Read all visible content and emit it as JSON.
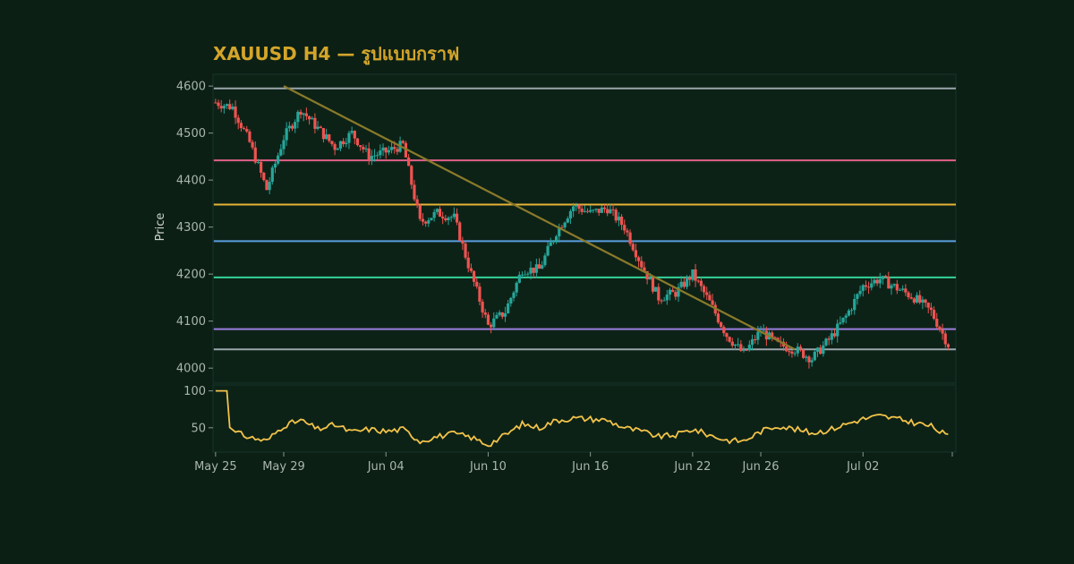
{
  "chart_data": {
    "type": "candlestick",
    "title": "XAUUSD H4 — รูปแบบกราฟ",
    "ylabel": "Price",
    "ylim": [
      3968,
      4625
    ],
    "yticks": [
      4000,
      4100,
      4200,
      4300,
      4400,
      4500,
      4600
    ],
    "x_start": "May 25",
    "x_end": "Jul 07",
    "xticks": [
      "May 25",
      "May 29",
      "Jun 04",
      "Jun 10",
      "Jun 16",
      "Jun 22",
      "Jun 26",
      "Jul 02"
    ],
    "colors": {
      "background": "#0b1f14",
      "up": "#26a69a",
      "down": "#ef5350",
      "rsi": "#f2c34a",
      "trendline": "#8a7a2a",
      "title": "#d4a52a"
    },
    "levels": [
      {
        "price": 4595,
        "color": "#9aa5ac"
      },
      {
        "price": 4442,
        "color": "#e0608a"
      },
      {
        "price": 4348,
        "color": "#e5b336"
      },
      {
        "price": 4270,
        "color": "#5a9ee0"
      },
      {
        "price": 4193,
        "color": "#34d399"
      },
      {
        "price": 4083,
        "color": "#9b7ee0"
      },
      {
        "price": 4040,
        "color": "#9aa5ac"
      }
    ],
    "trendline": {
      "from": {
        "date": "May 29",
        "price": 4600
      },
      "to": {
        "date": "Jun 28",
        "price": 4040
      }
    },
    "series": [
      {
        "name": "close",
        "points": [
          [
            "May 25",
            4565
          ],
          [
            "May 26",
            4555
          ],
          [
            "May 27",
            4480
          ],
          [
            "May 28",
            4380
          ],
          [
            "May 29",
            4490
          ],
          [
            "May 30",
            4550
          ],
          [
            "May 31",
            4510
          ],
          [
            "Jun 01",
            4470
          ],
          [
            "Jun 02",
            4500
          ],
          [
            "Jun 03",
            4450
          ],
          [
            "Jun 04",
            4460
          ],
          [
            "Jun 05",
            4475
          ],
          [
            "Jun 06",
            4310
          ],
          [
            "Jun 07",
            4330
          ],
          [
            "Jun 08",
            4320
          ],
          [
            "Jun 09",
            4200
          ],
          [
            "Jun 10",
            4090
          ],
          [
            "Jun 11",
            4120
          ],
          [
            "Jun 12",
            4210
          ],
          [
            "Jun 13",
            4210
          ],
          [
            "Jun 14",
            4290
          ],
          [
            "Jun 15",
            4345
          ],
          [
            "Jun 16",
            4330
          ],
          [
            "Jun 17",
            4340
          ],
          [
            "Jun 18",
            4300
          ],
          [
            "Jun 19",
            4220
          ],
          [
            "Jun 20",
            4150
          ],
          [
            "Jun 21",
            4160
          ],
          [
            "Jun 22",
            4200
          ],
          [
            "Jun 23",
            4140
          ],
          [
            "Jun 24",
            4070
          ],
          [
            "Jun 25",
            4030
          ],
          [
            "Jun 26",
            4080
          ],
          [
            "Jun 27",
            4050
          ],
          [
            "Jun 28",
            4040
          ],
          [
            "Jun 29",
            4020
          ],
          [
            "Jun 30",
            4060
          ],
          [
            "Jul 01",
            4110
          ],
          [
            "Jul 02",
            4175
          ],
          [
            "Jul 03",
            4190
          ],
          [
            "Jul 04",
            4170
          ],
          [
            "Jul 05",
            4150
          ],
          [
            "Jul 06",
            4120
          ],
          [
            "Jul 07",
            4050
          ]
        ]
      },
      {
        "name": "rsi",
        "points": [
          [
            "May 25",
            100
          ],
          [
            "May 26",
            45
          ],
          [
            "May 27",
            37
          ],
          [
            "May 28",
            32
          ],
          [
            "May 29",
            53
          ],
          [
            "May 30",
            60
          ],
          [
            "May 31",
            48
          ],
          [
            "Jun 01",
            54
          ],
          [
            "Jun 02",
            44
          ],
          [
            "Jun 03",
            48
          ],
          [
            "Jun 04",
            45
          ],
          [
            "Jun 05",
            48
          ],
          [
            "Jun 06",
            32
          ],
          [
            "Jun 07",
            38
          ],
          [
            "Jun 08",
            42
          ],
          [
            "Jun 09",
            37
          ],
          [
            "Jun 10",
            27
          ],
          [
            "Jun 11",
            40
          ],
          [
            "Jun 12",
            55
          ],
          [
            "Jun 13",
            50
          ],
          [
            "Jun 14",
            60
          ],
          [
            "Jun 15",
            63
          ],
          [
            "Jun 16",
            62
          ],
          [
            "Jun 17",
            60
          ],
          [
            "Jun 18",
            50
          ],
          [
            "Jun 19",
            45
          ],
          [
            "Jun 20",
            38
          ],
          [
            "Jun 21",
            40
          ],
          [
            "Jun 22",
            48
          ],
          [
            "Jun 23",
            40
          ],
          [
            "Jun 24",
            33
          ],
          [
            "Jun 25",
            32
          ],
          [
            "Jun 26",
            45
          ],
          [
            "Jun 27",
            53
          ],
          [
            "Jun 28",
            48
          ],
          [
            "Jun 29",
            43
          ],
          [
            "Jun 30",
            47
          ],
          [
            "Jul 01",
            55
          ],
          [
            "Jul 02",
            62
          ],
          [
            "Jul 03",
            66
          ],
          [
            "Jul 04",
            62
          ],
          [
            "Jul 05",
            57
          ],
          [
            "Jul 06",
            52
          ],
          [
            "Jul 07",
            38
          ]
        ]
      }
    ],
    "rsi_ylim": [
      17,
      108
    ],
    "rsi_yticks": [
      50,
      100
    ]
  }
}
